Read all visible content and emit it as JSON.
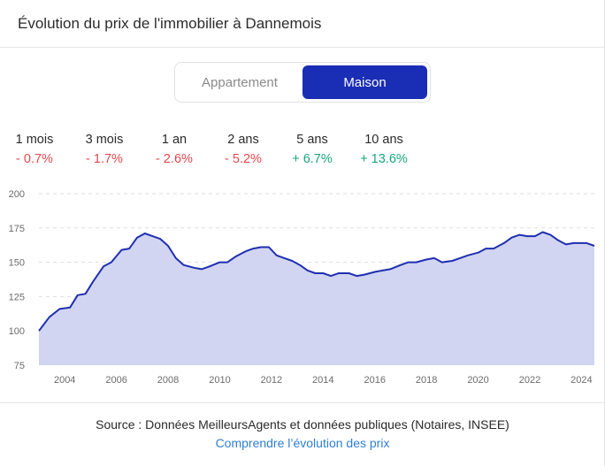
{
  "title": "Évolution du prix de l'immobilier à Dannemois",
  "toggle": {
    "appartement": "Appartement",
    "maison": "Maison",
    "selected": "Maison"
  },
  "periods": [
    {
      "label": "1 mois",
      "value": "- 0.7%",
      "trend": "neg"
    },
    {
      "label": "3 mois",
      "value": "- 1.7%",
      "trend": "neg"
    },
    {
      "label": "1 an",
      "value": "- 2.6%",
      "trend": "neg"
    },
    {
      "label": "2 ans",
      "value": "- 5.2%",
      "trend": "neg"
    },
    {
      "label": "5 ans",
      "value": "+ 6.7%",
      "trend": "pos"
    },
    {
      "label": "10 ans",
      "value": "+ 13.6%",
      "trend": "pos"
    }
  ],
  "footer": {
    "source": "Source : Données MeilleursAgents et données publiques (Notaires, INSEE)",
    "link": "Comprendre l’évolution des prix"
  },
  "colors": {
    "accent": "#1a2db5",
    "line": "#1f2fb0",
    "fill": "#d1d5f1",
    "negative": "#e5484d",
    "positive": "#17a77a",
    "link": "#2f7fd4"
  },
  "chart_data": {
    "type": "area",
    "title": "",
    "xlabel": "",
    "ylabel": "",
    "ylim": [
      75,
      200
    ],
    "xlim": [
      2003.0,
      2024.5
    ],
    "yticks": [
      75,
      100,
      125,
      150,
      175,
      200
    ],
    "xticks": [
      2004,
      2006,
      2008,
      2010,
      2012,
      2014,
      2016,
      2018,
      2020,
      2022,
      2024
    ],
    "grid": true,
    "legend": "none",
    "series": [
      {
        "x": [
          2003.0,
          2003.4,
          2003.8,
          2004.2,
          2004.5,
          2004.8,
          2005.1,
          2005.5,
          2005.8,
          2006.2,
          2006.5,
          2006.8,
          2007.1,
          2007.4,
          2007.7,
          2008.0,
          2008.3,
          2008.6,
          2009.0,
          2009.3,
          2009.6,
          2010.0,
          2010.3,
          2010.6,
          2011.0,
          2011.3,
          2011.6,
          2011.9,
          2012.2,
          2012.5,
          2012.8,
          2013.1,
          2013.4,
          2013.7,
          2014.0,
          2014.3,
          2014.6,
          2015.0,
          2015.3,
          2015.6,
          2016.0,
          2016.3,
          2016.6,
          2017.0,
          2017.3,
          2017.6,
          2018.0,
          2018.3,
          2018.6,
          2019.0,
          2019.3,
          2019.6,
          2020.0,
          2020.3,
          2020.6,
          2021.0,
          2021.3,
          2021.6,
          2021.9,
          2022.2,
          2022.5,
          2022.8,
          2023.1,
          2023.4,
          2023.7,
          2024.0,
          2024.2,
          2024.5
        ],
        "values": [
          100,
          110,
          116,
          117,
          126,
          127,
          136,
          147,
          150,
          159,
          160,
          168,
          171,
          169,
          167,
          162,
          153,
          148,
          146,
          145,
          147,
          150,
          150,
          154,
          158,
          160,
          161,
          161,
          155,
          153,
          151,
          148,
          144,
          142,
          142,
          140,
          142,
          142,
          140,
          141,
          143,
          144,
          145,
          148,
          150,
          150,
          152,
          153,
          150,
          151,
          153,
          155,
          157,
          160,
          160,
          164,
          168,
          170,
          169,
          169,
          172,
          170,
          166,
          163,
          164,
          164,
          164,
          162
        ]
      }
    ]
  }
}
